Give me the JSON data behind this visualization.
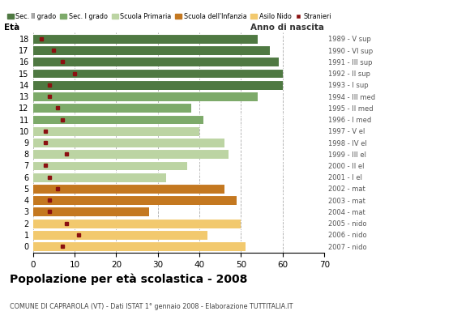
{
  "ages": [
    18,
    17,
    16,
    15,
    14,
    13,
    12,
    11,
    10,
    9,
    8,
    7,
    6,
    5,
    4,
    3,
    2,
    1,
    0
  ],
  "years": [
    "1989 - V sup",
    "1990 - VI sup",
    "1991 - III sup",
    "1992 - II sup",
    "1993 - I sup",
    "1994 - III med",
    "1995 - II med",
    "1996 - I med",
    "1997 - V el",
    "1998 - IV el",
    "1999 - III el",
    "2000 - II el",
    "2001 - I el",
    "2002 - mat",
    "2003 - mat",
    "2004 - mat",
    "2005 - nido",
    "2006 - nido",
    "2007 - nido"
  ],
  "bar_values": [
    54,
    57,
    59,
    60,
    60,
    54,
    38,
    41,
    40,
    46,
    47,
    37,
    32,
    46,
    49,
    28,
    50,
    42,
    51
  ],
  "stranieri": [
    2,
    5,
    7,
    10,
    4,
    4,
    6,
    7,
    3,
    3,
    8,
    3,
    4,
    6,
    4,
    4,
    8,
    11,
    7
  ],
  "categories": {
    "Sec. II grado": {
      "ages": [
        18,
        17,
        16,
        15,
        14
      ],
      "color": "#4f7942"
    },
    "Sec. I grado": {
      "ages": [
        13,
        12,
        11
      ],
      "color": "#7daa6a"
    },
    "Scuola Primaria": {
      "ages": [
        10,
        9,
        8,
        7,
        6
      ],
      "color": "#bcd4a3"
    },
    "Scuola dell'Infanzia": {
      "ages": [
        5,
        4,
        3
      ],
      "color": "#c47820"
    },
    "Asilo Nido": {
      "ages": [
        2,
        1,
        0
      ],
      "color": "#f2c96e"
    }
  },
  "legend_colors": {
    "Sec. II grado": "#4f7942",
    "Sec. I grado": "#7daa6a",
    "Scuola Primaria": "#bcd4a3",
    "Scuola dell'Infanzia": "#c47820",
    "Asilo Nido": "#f2c96e",
    "Stranieri": "#8b1010"
  },
  "title": "Popolazione per età scolastica - 2008",
  "subtitle": "COMUNE DI CAPRAROLA (VT) - Dati ISTAT 1° gennaio 2008 - Elaborazione TUTTITALIA.IT",
  "xlabel_left": "Età",
  "xlabel_right": "Anno di nascita",
  "xlim": [
    0,
    70
  ],
  "xticks": [
    0,
    10,
    20,
    30,
    40,
    50,
    60,
    70
  ],
  "background_color": "#ffffff"
}
